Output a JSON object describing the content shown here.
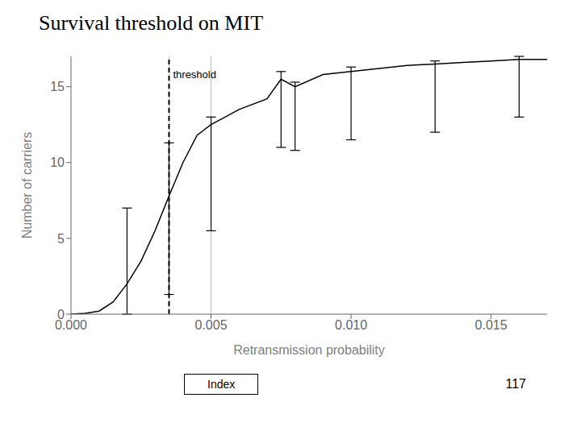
{
  "chart_data": {
    "type": "line",
    "title": "Survival threshold on MIT",
    "xlabel": "Retransmission probability",
    "ylabel": "Number of carriers",
    "x": [
      0,
      0.0005,
      0.001,
      0.0015,
      0.002,
      0.0025,
      0.003,
      0.0035,
      0.004,
      0.0045,
      0.005,
      0.0055,
      0.006,
      0.007,
      0.0075,
      0.008,
      0.009,
      0.01,
      0.011,
      0.012,
      0.013,
      0.014,
      0.015,
      0.016,
      0.017
    ],
    "values": [
      0,
      0.05,
      0.2,
      0.8,
      2.0,
      3.5,
      5.5,
      7.8,
      10.0,
      11.8,
      12.5,
      13.0,
      13.5,
      14.2,
      15.5,
      15.0,
      15.8,
      16.0,
      16.2,
      16.4,
      16.5,
      16.6,
      16.7,
      16.8,
      16.8
    ],
    "color": "black",
    "error_bars": [
      {
        "x": 0.002,
        "y": 2.0,
        "minus": 2.0,
        "plus": 5.0
      },
      {
        "x": 0.0035,
        "y": 7.8,
        "minus": 6.5,
        "plus": 3.5
      },
      {
        "x": 0.005,
        "y": 12.5,
        "minus": 7.0,
        "plus": 0.5
      },
      {
        "x": 0.0075,
        "y": 15.5,
        "minus": 4.5,
        "plus": 0.5
      },
      {
        "x": 0.008,
        "y": 15.0,
        "minus": 4.2,
        "plus": 0.3
      },
      {
        "x": 0.01,
        "y": 16.0,
        "minus": 4.5,
        "plus": 0.3
      },
      {
        "x": 0.013,
        "y": 16.5,
        "minus": 4.5,
        "plus": 0.2
      },
      {
        "x": 0.016,
        "y": 16.8,
        "minus": 3.8,
        "plus": 0.2
      }
    ],
    "reference_lines": [
      {
        "x": 0.0035,
        "color": "gray",
        "line_style": "solid"
      },
      {
        "x": 0.005,
        "color": "gray",
        "line_style": "solid"
      },
      {
        "x": 0.0035,
        "color": "black",
        "line_style": "dashed"
      }
    ],
    "annotations": [
      {
        "text": "threshold",
        "x": 0.0035,
        "y": 15.8
      }
    ],
    "xlim": [
      0,
      0.017
    ],
    "ylim": [
      0,
      17
    ],
    "xticks": [
      {
        "value": 0,
        "label": "0.000"
      },
      0.005,
      {
        "value": 0.01,
        "label": "0.010"
      },
      0.015
    ],
    "yticks": [
      0,
      5,
      10,
      15
    ],
    "grid": false,
    "index_label": "Index",
    "page_number": "117"
  }
}
